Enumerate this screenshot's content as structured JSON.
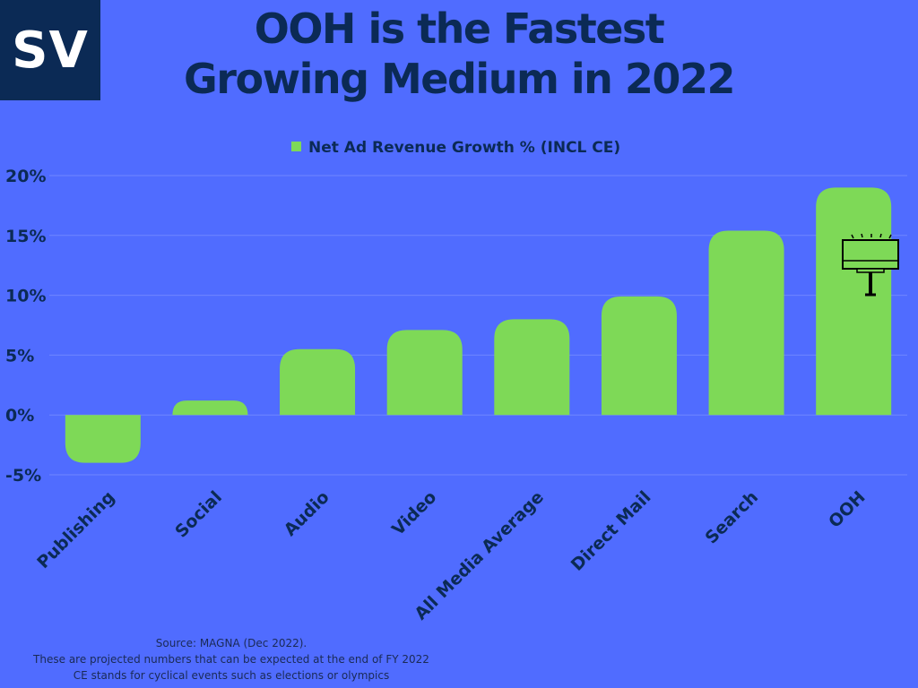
{
  "logo": {
    "text": "SV"
  },
  "title": {
    "line1": "OOH is the Fastest",
    "line2": "Growing Medium in 2022"
  },
  "colors": {
    "background": "#506cff",
    "bar": "#7ed957",
    "title": "#0b2a55",
    "logo_bg": "#0b2a55",
    "gridline": "#6f86ff",
    "label": "#0b2a55"
  },
  "chart_data": {
    "type": "bar",
    "legend": {
      "label": "Net Ad Revenue Growth % (INCL CE)",
      "position": "top"
    },
    "categories": [
      "Publishing",
      "Social",
      "Audio",
      "Video",
      "All Media Average",
      "Direct Mail",
      "Search",
      "OOH"
    ],
    "series": [
      {
        "name": "Net Ad Revenue Growth % (INCL CE)",
        "values": [
          -4.0,
          1.2,
          5.5,
          7.1,
          8.0,
          9.9,
          15.4,
          19.0
        ]
      }
    ],
    "yticks": [
      "20%",
      "15%",
      "10%",
      "5%",
      "0%",
      "-5%"
    ],
    "ylim": [
      -5,
      20
    ],
    "grid": true,
    "annotation_icon": "billboard-icon"
  },
  "footer": {
    "line1": "Source: MAGNA (Dec 2022).",
    "line2": "These are projected numbers that can be expected at the end of FY 2022",
    "line3": "CE stands for cyclical events such as elections or olympics"
  }
}
